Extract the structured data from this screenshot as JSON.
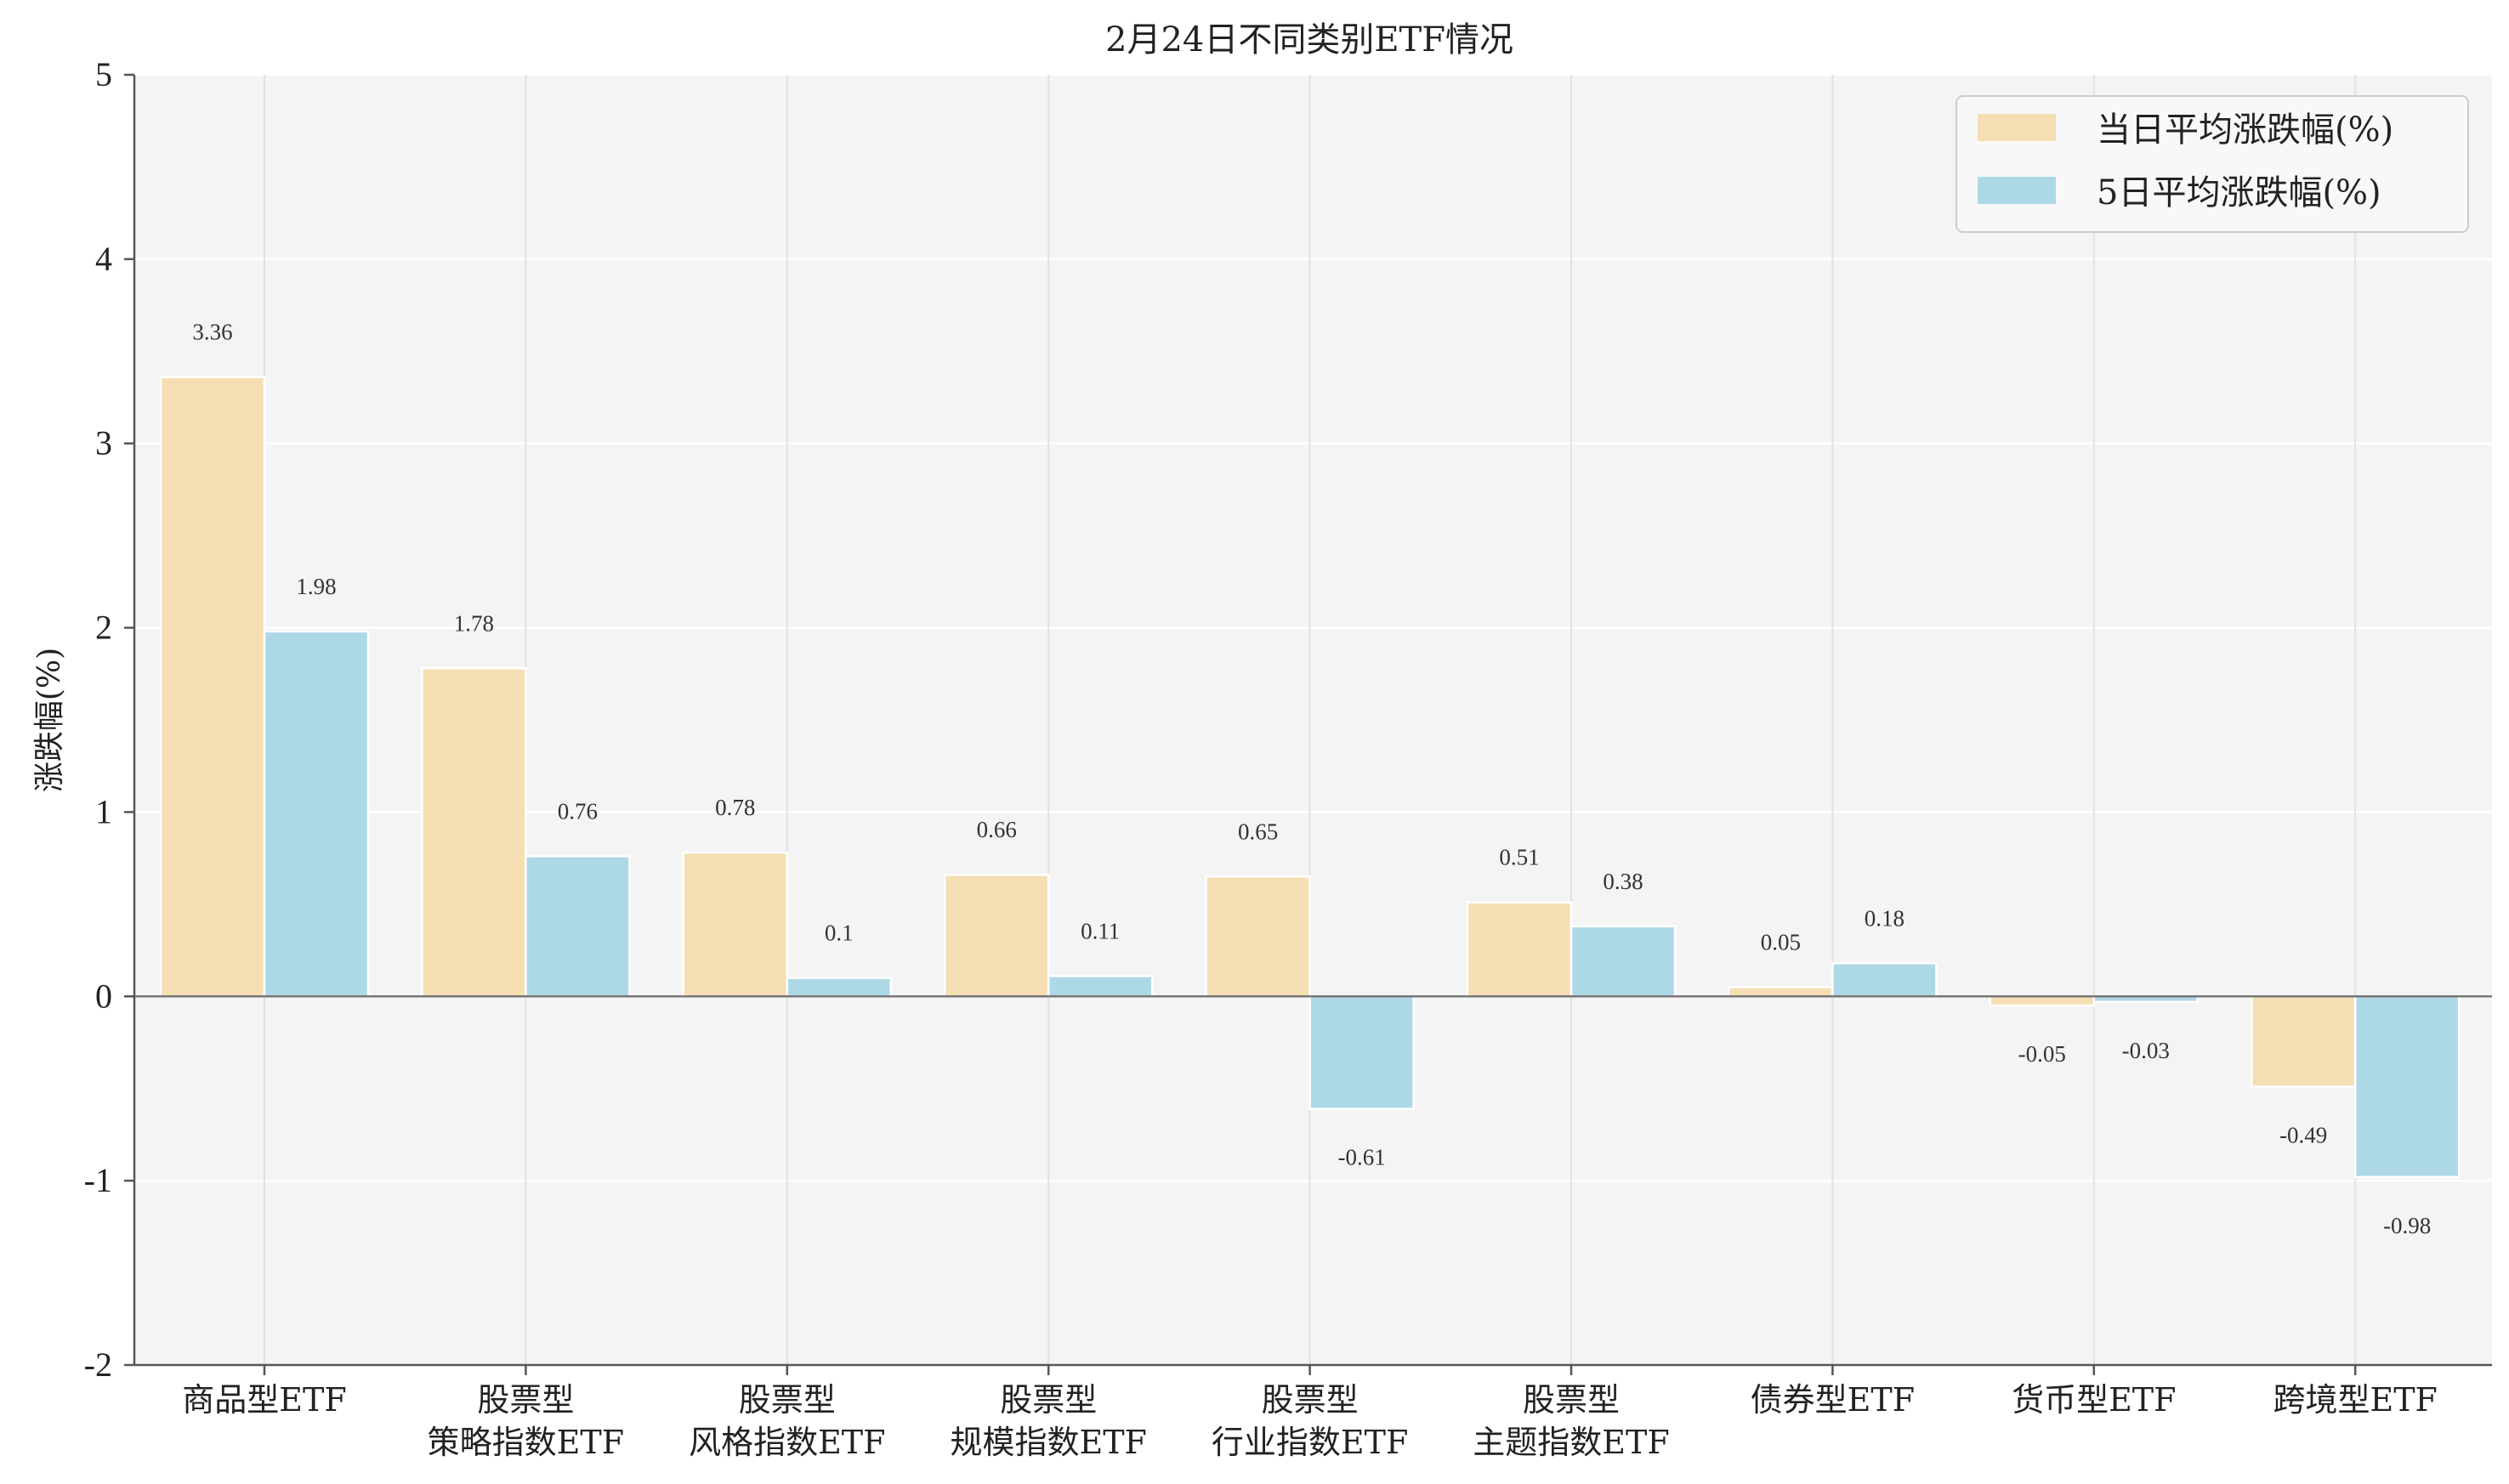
{
  "chart_data": {
    "type": "bar",
    "title": "2月24日不同类别ETF情况",
    "ylabel": "涨跌幅(%)",
    "xlabel": "",
    "ylim": [
      -2,
      5
    ],
    "yticks": [
      "-2",
      "-1",
      "0",
      "1",
      "2",
      "3",
      "4",
      "5"
    ],
    "grid": true,
    "legend_position": "top-right",
    "categories": [
      [
        "商品型ETF"
      ],
      [
        "股票型",
        "策略指数ETF"
      ],
      [
        "股票型",
        "风格指数ETF"
      ],
      [
        "股票型",
        "规模指数ETF"
      ],
      [
        "股票型",
        "行业指数ETF"
      ],
      [
        "股票型",
        "主题指数ETF"
      ],
      [
        "债券型ETF"
      ],
      [
        "货币型ETF"
      ],
      [
        "跨境型ETF"
      ]
    ],
    "series": [
      {
        "name": "当日平均涨跌幅(%)",
        "color": "#F5DEB3",
        "values": [
          3.36,
          1.78,
          0.78,
          0.66,
          0.65,
          0.51,
          0.05,
          -0.05,
          -0.49
        ],
        "labels": [
          "3.36",
          "1.78",
          "0.78",
          "0.66",
          "0.65",
          "0.51",
          "0.05",
          "-0.05",
          "-0.49"
        ]
      },
      {
        "name": "5日平均涨跌幅(%)",
        "color": "#ADD8E6",
        "values": [
          1.98,
          0.76,
          0.1,
          0.11,
          -0.61,
          0.38,
          0.18,
          -0.03,
          -0.98
        ],
        "labels": [
          "1.98",
          "0.76",
          "0.1",
          "0.11",
          "-0.61",
          "0.38",
          "0.18",
          "-0.03",
          "-0.98"
        ]
      }
    ]
  }
}
